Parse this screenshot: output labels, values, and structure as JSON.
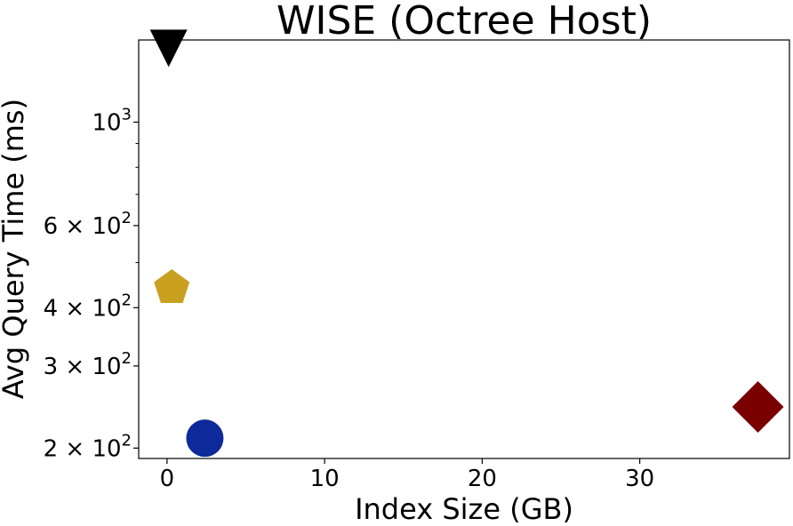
{
  "chart_data": {
    "type": "scatter",
    "title": "WISE (Octree Host)",
    "xlabel": "Index Size (GB)",
    "ylabel": "Avg Query Time (ms)",
    "xlim": [
      -1.8,
      39.5
    ],
    "ylim": [
      190,
      1500
    ],
    "yscale": "log",
    "grid": false,
    "x_ticks": [
      {
        "value": 0,
        "label": "0"
      },
      {
        "value": 10,
        "label": "10"
      },
      {
        "value": 20,
        "label": "20"
      },
      {
        "value": 30,
        "label": "30"
      }
    ],
    "y_ticks": [
      {
        "value": 200,
        "label": "2 × 10",
        "exp": "2"
      },
      {
        "value": 300,
        "label": "3 × 10",
        "exp": "2"
      },
      {
        "value": 400,
        "label": "4 × 10",
        "exp": "2"
      },
      {
        "value": 600,
        "label": "6 × 10",
        "exp": "2"
      },
      {
        "value": 1000,
        "label": "10",
        "exp": "3"
      }
    ],
    "y_minor_ticks": [
      500,
      700,
      800,
      900
    ],
    "points": [
      {
        "x": 0.1,
        "y": 1390,
        "marker": "triangle-down",
        "color": "#000000"
      },
      {
        "x": 0.3,
        "y": 445,
        "marker": "pentagon",
        "color": "#c9a020"
      },
      {
        "x": 2.4,
        "y": 210,
        "marker": "circle",
        "color": "#0e2a9a"
      },
      {
        "x": 37.5,
        "y": 245,
        "marker": "diamond",
        "color": "#7a0000"
      }
    ]
  }
}
